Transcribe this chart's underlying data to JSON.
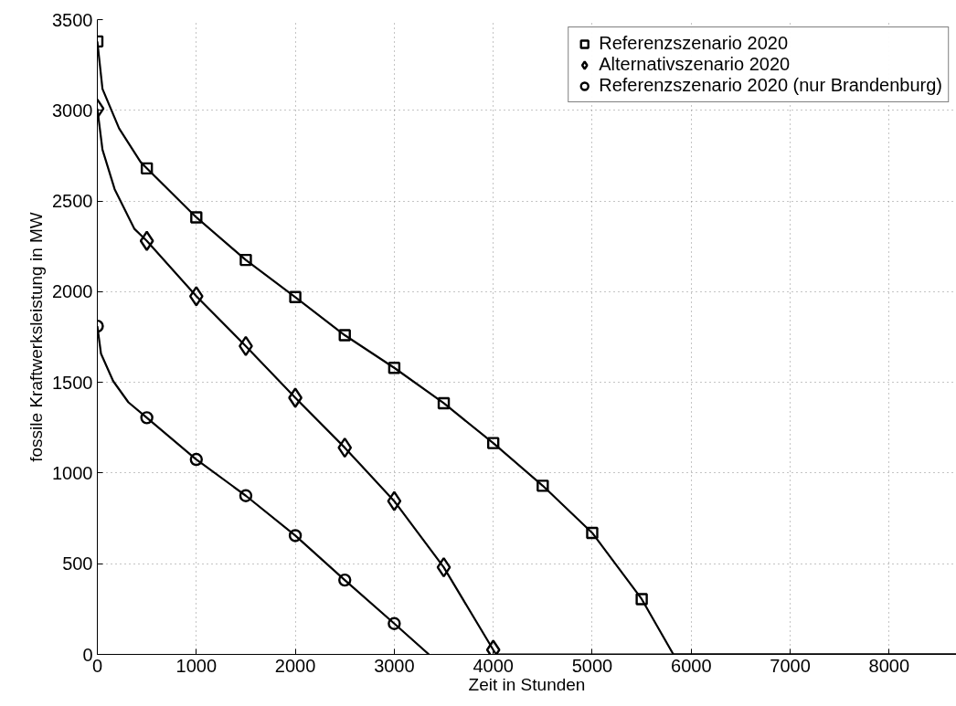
{
  "chart_data": {
    "type": "line",
    "xlabel": "Zeit in Stunden",
    "ylabel": "fossile Kraftwerksleistung in MW",
    "xlim": [
      0,
      8680
    ],
    "ylim": [
      0,
      3500
    ],
    "xticks": [
      0,
      1000,
      2000,
      3000,
      4000,
      5000,
      6000,
      7000,
      8000
    ],
    "yticks": [
      0,
      500,
      1000,
      1500,
      2000,
      2500,
      3000,
      3500
    ],
    "grid": true,
    "legend": "top right",
    "line_style": "solid",
    "series": [
      {
        "color": "#000000",
        "marker": "none",
        "x": [
          0,
          52,
          220,
          437,
          500,
          1000,
          1500,
          2000,
          2500,
          3000,
          3500,
          4000,
          4500,
          5000,
          5500,
          5820,
          8680
        ],
        "values": [
          3380,
          3118,
          2900,
          2715,
          2680,
          2410,
          2175,
          1970,
          1760,
          1580,
          1385,
          1165,
          930,
          670,
          305,
          0,
          0
        ]
      },
      {
        "color": "#000000",
        "marker": "none",
        "x": [
          0,
          52,
          175,
          375,
          500,
          1000,
          1500,
          2000,
          2500,
          3000,
          3500,
          4000,
          4030,
          8680
        ],
        "values": [
          3010,
          2783,
          2565,
          2346,
          2280,
          1975,
          1700,
          1415,
          1140,
          845,
          480,
          25,
          0,
          0
        ]
      },
      {
        "color": "#000000",
        "marker": "none",
        "x": [
          0,
          37,
          160,
          314,
          500,
          1000,
          1500,
          2000,
          2500,
          3000,
          3350
        ],
        "values": [
          1810,
          1658,
          1507,
          1390,
          1305,
          1075,
          875,
          655,
          410,
          170,
          0
        ]
      },
      {
        "type": "scatter",
        "name": "Referenzszenario 2020",
        "color": "#000000",
        "marker": "square",
        "x": [
          0,
          500,
          1000,
          1500,
          2000,
          2500,
          3000,
          3500,
          4000,
          4500,
          5000,
          5500
        ],
        "values": [
          3380,
          2680,
          2410,
          2175,
          1970,
          1760,
          1580,
          1385,
          1165,
          930,
          670,
          305
        ]
      },
      {
        "type": "scatter",
        "name": "Alternativszenario 2020",
        "color": "#000000",
        "marker": "diamond",
        "x": [
          0,
          500,
          1000,
          1500,
          2000,
          2500,
          3000,
          3500,
          4000
        ],
        "values": [
          3010,
          2280,
          1975,
          1700,
          1415,
          1140,
          845,
          480,
          25
        ]
      },
      {
        "type": "scatter",
        "name": "Referenzszenario 2020 (nur Brandenburg)",
        "color": "#000000",
        "marker": "circle",
        "x": [
          0,
          500,
          1000,
          1500,
          2000,
          2500,
          3000
        ],
        "values": [
          1810,
          1305,
          1075,
          875,
          655,
          410,
          170
        ]
      }
    ]
  }
}
